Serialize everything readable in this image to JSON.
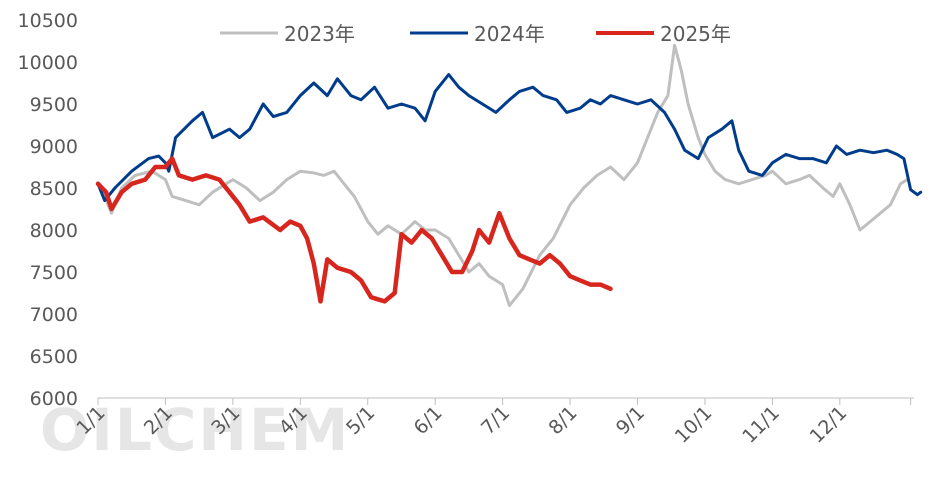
{
  "chart_data": {
    "type": "line",
    "title": "",
    "xlabel": "",
    "ylabel": "",
    "ylim": [
      6000,
      10500
    ],
    "yticks": [
      6000,
      6500,
      7000,
      7500,
      8000,
      8500,
      9000,
      9500,
      10000,
      10500
    ],
    "x_tick_labels": [
      "1/1",
      "2/1",
      "3/1",
      "4/1",
      "5/1",
      "6/1",
      "7/1",
      "8/1",
      "9/1",
      "10/1",
      "11/1",
      "12/1"
    ],
    "x_tick_months": [
      1,
      2,
      3,
      4,
      5,
      6,
      7,
      8,
      9,
      10,
      11,
      12
    ],
    "legend_position": "top",
    "grid": "none",
    "watermark": "OILCHEM",
    "series": [
      {
        "name": "2023年",
        "color": "#bfbfbf",
        "points": [
          [
            1.0,
            8550
          ],
          [
            1.1,
            8400
          ],
          [
            1.2,
            8200
          ],
          [
            1.35,
            8500
          ],
          [
            1.55,
            8650
          ],
          [
            1.8,
            8700
          ],
          [
            2.0,
            8600
          ],
          [
            2.1,
            8400
          ],
          [
            2.3,
            8350
          ],
          [
            2.5,
            8300
          ],
          [
            2.7,
            8450
          ],
          [
            2.9,
            8550
          ],
          [
            3.0,
            8600
          ],
          [
            3.2,
            8500
          ],
          [
            3.4,
            8350
          ],
          [
            3.6,
            8450
          ],
          [
            3.8,
            8600
          ],
          [
            4.0,
            8700
          ],
          [
            4.2,
            8680
          ],
          [
            4.35,
            8650
          ],
          [
            4.5,
            8700
          ],
          [
            4.65,
            8550
          ],
          [
            4.8,
            8400
          ],
          [
            5.0,
            8100
          ],
          [
            5.15,
            7950
          ],
          [
            5.3,
            8050
          ],
          [
            5.5,
            7950
          ],
          [
            5.7,
            8100
          ],
          [
            5.85,
            8000
          ],
          [
            6.0,
            8000
          ],
          [
            6.2,
            7900
          ],
          [
            6.35,
            7700
          ],
          [
            6.5,
            7500
          ],
          [
            6.65,
            7600
          ],
          [
            6.8,
            7450
          ],
          [
            7.0,
            7350
          ],
          [
            7.1,
            7100
          ],
          [
            7.3,
            7300
          ],
          [
            7.55,
            7700
          ],
          [
            7.75,
            7900
          ],
          [
            8.0,
            8300
          ],
          [
            8.2,
            8500
          ],
          [
            8.4,
            8650
          ],
          [
            8.6,
            8750
          ],
          [
            8.8,
            8600
          ],
          [
            9.0,
            8800
          ],
          [
            9.15,
            9100
          ],
          [
            9.3,
            9400
          ],
          [
            9.45,
            9600
          ],
          [
            9.55,
            10200
          ],
          [
            9.65,
            9900
          ],
          [
            9.75,
            9500
          ],
          [
            9.9,
            9100
          ],
          [
            10.0,
            8900
          ],
          [
            10.15,
            8700
          ],
          [
            10.3,
            8600
          ],
          [
            10.5,
            8550
          ],
          [
            10.7,
            8600
          ],
          [
            10.9,
            8650
          ],
          [
            11.0,
            8700
          ],
          [
            11.2,
            8550
          ],
          [
            11.4,
            8600
          ],
          [
            11.55,
            8650
          ],
          [
            11.75,
            8500
          ],
          [
            11.9,
            8400
          ],
          [
            12.0,
            8550
          ],
          [
            12.15,
            8300
          ],
          [
            12.3,
            8000
          ],
          [
            12.45,
            8100
          ],
          [
            12.6,
            8200
          ],
          [
            12.75,
            8300
          ],
          [
            12.9,
            8550
          ],
          [
            13.0,
            8600
          ]
        ]
      },
      {
        "name": "2024年",
        "color": "#003c8c",
        "points": [
          [
            1.0,
            8550
          ],
          [
            1.1,
            8350
          ],
          [
            1.25,
            8500
          ],
          [
            1.5,
            8700
          ],
          [
            1.75,
            8850
          ],
          [
            1.9,
            8880
          ],
          [
            2.0,
            8800
          ],
          [
            2.05,
            8700
          ],
          [
            2.15,
            9100
          ],
          [
            2.4,
            9300
          ],
          [
            2.55,
            9400
          ],
          [
            2.7,
            9100
          ],
          [
            2.95,
            9200
          ],
          [
            3.1,
            9100
          ],
          [
            3.25,
            9200
          ],
          [
            3.45,
            9500
          ],
          [
            3.6,
            9350
          ],
          [
            3.8,
            9400
          ],
          [
            4.0,
            9600
          ],
          [
            4.2,
            9750
          ],
          [
            4.4,
            9600
          ],
          [
            4.55,
            9800
          ],
          [
            4.75,
            9600
          ],
          [
            4.9,
            9550
          ],
          [
            5.1,
            9700
          ],
          [
            5.3,
            9450
          ],
          [
            5.5,
            9500
          ],
          [
            5.7,
            9450
          ],
          [
            5.85,
            9300
          ],
          [
            6.0,
            9650
          ],
          [
            6.2,
            9850
          ],
          [
            6.35,
            9700
          ],
          [
            6.5,
            9600
          ],
          [
            6.7,
            9500
          ],
          [
            6.9,
            9400
          ],
          [
            7.1,
            9550
          ],
          [
            7.25,
            9650
          ],
          [
            7.45,
            9700
          ],
          [
            7.6,
            9600
          ],
          [
            7.8,
            9550
          ],
          [
            7.95,
            9400
          ],
          [
            8.15,
            9450
          ],
          [
            8.3,
            9550
          ],
          [
            8.45,
            9500
          ],
          [
            8.6,
            9600
          ],
          [
            8.8,
            9550
          ],
          [
            9.0,
            9500
          ],
          [
            9.2,
            9550
          ],
          [
            9.4,
            9400
          ],
          [
            9.55,
            9200
          ],
          [
            9.7,
            8950
          ],
          [
            9.9,
            8850
          ],
          [
            10.05,
            9100
          ],
          [
            10.25,
            9200
          ],
          [
            10.4,
            9300
          ],
          [
            10.5,
            8950
          ],
          [
            10.65,
            8700
          ],
          [
            10.85,
            8650
          ],
          [
            11.0,
            8800
          ],
          [
            11.2,
            8900
          ],
          [
            11.4,
            8850
          ],
          [
            11.6,
            8850
          ],
          [
            11.8,
            8800
          ],
          [
            11.95,
            9000
          ],
          [
            12.1,
            8900
          ],
          [
            12.3,
            8950
          ],
          [
            12.5,
            8920
          ],
          [
            12.7,
            8950
          ],
          [
            12.85,
            8900
          ],
          [
            12.95,
            8850
          ],
          [
            13.05,
            8480
          ],
          [
            13.15,
            8420
          ],
          [
            13.2,
            8450
          ]
        ]
      },
      {
        "name": "2025年",
        "color": "#d7261e",
        "points": [
          [
            1.0,
            8550
          ],
          [
            1.12,
            8450
          ],
          [
            1.2,
            8250
          ],
          [
            1.35,
            8450
          ],
          [
            1.5,
            8550
          ],
          [
            1.7,
            8600
          ],
          [
            1.85,
            8750
          ],
          [
            2.0,
            8750
          ],
          [
            2.1,
            8850
          ],
          [
            2.2,
            8650
          ],
          [
            2.4,
            8600
          ],
          [
            2.6,
            8650
          ],
          [
            2.8,
            8600
          ],
          [
            2.95,
            8450
          ],
          [
            3.1,
            8300
          ],
          [
            3.25,
            8100
          ],
          [
            3.45,
            8150
          ],
          [
            3.7,
            8000
          ],
          [
            3.85,
            8100
          ],
          [
            4.0,
            8050
          ],
          [
            4.1,
            7900
          ],
          [
            4.2,
            7600
          ],
          [
            4.3,
            7150
          ],
          [
            4.4,
            7650
          ],
          [
            4.55,
            7550
          ],
          [
            4.75,
            7500
          ],
          [
            4.9,
            7400
          ],
          [
            5.05,
            7200
          ],
          [
            5.25,
            7150
          ],
          [
            5.4,
            7250
          ],
          [
            5.5,
            7950
          ],
          [
            5.65,
            7850
          ],
          [
            5.8,
            8000
          ],
          [
            5.95,
            7900
          ],
          [
            6.1,
            7700
          ],
          [
            6.25,
            7500
          ],
          [
            6.4,
            7500
          ],
          [
            6.55,
            7750
          ],
          [
            6.65,
            8000
          ],
          [
            6.8,
            7850
          ],
          [
            6.95,
            8200
          ],
          [
            7.1,
            7900
          ],
          [
            7.25,
            7700
          ],
          [
            7.4,
            7650
          ],
          [
            7.55,
            7600
          ],
          [
            7.7,
            7700
          ],
          [
            7.85,
            7600
          ],
          [
            8.0,
            7450
          ],
          [
            8.15,
            7400
          ],
          [
            8.3,
            7350
          ],
          [
            8.45,
            7350
          ],
          [
            8.6,
            7300
          ]
        ]
      }
    ]
  }
}
